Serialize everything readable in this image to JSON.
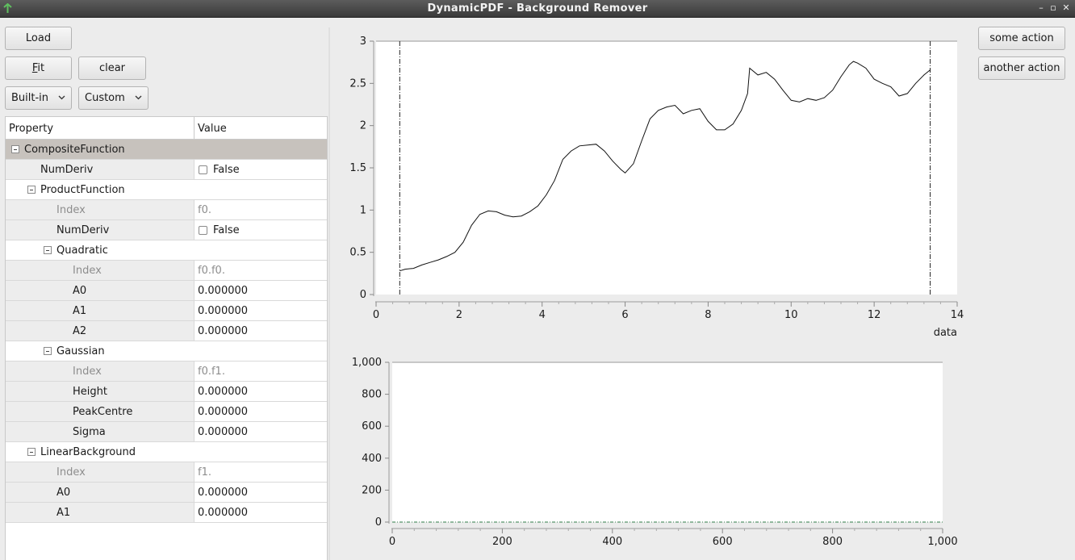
{
  "window": {
    "title": "DynamicPDF - Background Remover"
  },
  "toolbar": {
    "load_label": "Load",
    "fit_label": "Fit",
    "fit_mnemonic": "F",
    "fit_rest": "it",
    "clear_label": "clear",
    "builtin_label": "Built-in",
    "custom_label": "Custom"
  },
  "actions": {
    "some_action_label": "some action",
    "another_action_label": "another action"
  },
  "properties": {
    "header_property": "Property",
    "header_value": "Value",
    "rows": [
      {
        "label": "CompositeFunction",
        "value": "",
        "kind": "group"
      },
      {
        "label": "NumDeriv",
        "value": "False",
        "kind": "bool"
      },
      {
        "label": "ProductFunction",
        "value": "",
        "kind": "sub"
      },
      {
        "label": "Index",
        "value": "f0.",
        "kind": "muted"
      },
      {
        "label": "NumDeriv",
        "value": "False",
        "kind": "bool"
      },
      {
        "label": "Quadratic",
        "value": "",
        "kind": "sub"
      },
      {
        "label": "Index",
        "value": "f0.f0.",
        "kind": "muted"
      },
      {
        "label": "A0",
        "value": "0.000000",
        "kind": "value"
      },
      {
        "label": "A1",
        "value": "0.000000",
        "kind": "value"
      },
      {
        "label": "A2",
        "value": "0.000000",
        "kind": "value"
      },
      {
        "label": "Gaussian",
        "value": "",
        "kind": "sub"
      },
      {
        "label": "Index",
        "value": "f0.f1.",
        "kind": "muted"
      },
      {
        "label": "Height",
        "value": "0.000000",
        "kind": "value"
      },
      {
        "label": "PeakCentre",
        "value": "0.000000",
        "kind": "value"
      },
      {
        "label": "Sigma",
        "value": "0.000000",
        "kind": "value"
      },
      {
        "label": "LinearBackground",
        "value": "",
        "kind": "sub"
      },
      {
        "label": "Index",
        "value": "f1.",
        "kind": "muted"
      },
      {
        "label": "A0",
        "value": "0.000000",
        "kind": "value"
      },
      {
        "label": "A1",
        "value": "0.000000",
        "kind": "value"
      }
    ]
  },
  "chart_data": [
    {
      "type": "line",
      "xlabel": "data",
      "ylabel": "",
      "xlim": [
        0,
        14
      ],
      "ylim": [
        0,
        3
      ],
      "x_ticks": [
        "0",
        "2",
        "4",
        "6",
        "8",
        "10",
        "12",
        "14"
      ],
      "y_ticks": [
        "0",
        "0.5",
        "1",
        "1.5",
        "2",
        "2.5",
        "3"
      ],
      "range_markers": [
        0.57,
        13.35
      ],
      "series": [
        {
          "x": [
            0.57,
            0.7,
            0.9,
            1.1,
            1.3,
            1.5,
            1.7,
            1.9,
            2.1,
            2.3,
            2.5,
            2.7,
            2.9,
            3.1,
            3.3,
            3.5,
            3.7,
            3.9,
            4.1,
            4.3,
            4.5,
            4.7,
            4.9,
            5.1,
            5.3,
            5.5,
            5.7,
            5.9,
            6.0,
            6.2,
            6.4,
            6.6,
            6.8,
            7.0,
            7.2,
            7.4,
            7.6,
            7.8,
            8.0,
            8.2,
            8.4,
            8.6,
            8.8,
            8.95,
            9.0,
            9.2,
            9.4,
            9.6,
            9.8,
            10.0,
            10.2,
            10.4,
            10.6,
            10.8,
            11.0,
            11.2,
            11.4,
            11.5,
            11.6,
            11.8,
            12.0,
            12.2,
            12.4,
            12.6,
            12.8,
            13.0,
            13.2,
            13.35
          ],
          "y": [
            0.28,
            0.3,
            0.31,
            0.35,
            0.38,
            0.41,
            0.45,
            0.5,
            0.62,
            0.82,
            0.95,
            0.99,
            0.98,
            0.94,
            0.92,
            0.93,
            0.98,
            1.05,
            1.18,
            1.35,
            1.6,
            1.7,
            1.76,
            1.77,
            1.78,
            1.7,
            1.58,
            1.48,
            1.44,
            1.55,
            1.82,
            2.08,
            2.18,
            2.22,
            2.24,
            2.14,
            2.18,
            2.2,
            2.05,
            1.95,
            1.95,
            2.02,
            2.18,
            2.38,
            2.68,
            2.6,
            2.63,
            2.55,
            2.42,
            2.3,
            2.28,
            2.32,
            2.3,
            2.33,
            2.42,
            2.58,
            2.72,
            2.76,
            2.74,
            2.68,
            2.55,
            2.5,
            2.46,
            2.35,
            2.38,
            2.5,
            2.6,
            2.66
          ]
        }
      ]
    },
    {
      "type": "line",
      "xlabel": "",
      "ylabel": "",
      "xlim": [
        0,
        1000
      ],
      "ylim": [
        0,
        1000
      ],
      "x_ticks": [
        "0",
        "200",
        "400",
        "600",
        "800",
        "1,000"
      ],
      "y_ticks": [
        "0",
        "200",
        "400",
        "600",
        "800",
        "1,000"
      ],
      "series": [
        {
          "x": [
            0,
            1000
          ],
          "y": [
            0,
            0
          ],
          "color": "#2f7d4a"
        }
      ]
    }
  ]
}
